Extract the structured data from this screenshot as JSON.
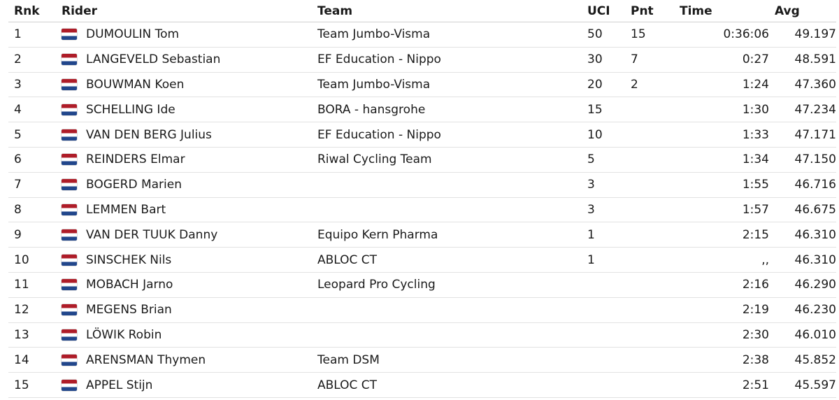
{
  "headers": {
    "rank": "Rnk",
    "rider": "Rider",
    "team": "Team",
    "uci": "UCI",
    "points": "Pnt",
    "time": "Time",
    "avg": "Avg"
  },
  "flag_icon": "netherlands-flag-icon",
  "rows": [
    {
      "rank": "1",
      "rider": "DUMOULIN Tom",
      "team": "Team Jumbo-Visma",
      "uci": "50",
      "points": "15",
      "time": "0:36:06",
      "avg": "49.197"
    },
    {
      "rank": "2",
      "rider": "LANGEVELD Sebastian",
      "team": "EF Education - Nippo",
      "uci": "30",
      "points": "7",
      "time": "0:27",
      "avg": "48.591"
    },
    {
      "rank": "3",
      "rider": "BOUWMAN Koen",
      "team": "Team Jumbo-Visma",
      "uci": "20",
      "points": "2",
      "time": "1:24",
      "avg": "47.360"
    },
    {
      "rank": "4",
      "rider": "SCHELLING Ide",
      "team": "BORA - hansgrohe",
      "uci": "15",
      "points": "",
      "time": "1:30",
      "avg": "47.234"
    },
    {
      "rank": "5",
      "rider": "VAN DEN BERG Julius",
      "team": "EF Education - Nippo",
      "uci": "10",
      "points": "",
      "time": "1:33",
      "avg": "47.171"
    },
    {
      "rank": "6",
      "rider": "REINDERS Elmar",
      "team": "Riwal Cycling Team",
      "uci": "5",
      "points": "",
      "time": "1:34",
      "avg": "47.150"
    },
    {
      "rank": "7",
      "rider": "BOGERD Marien",
      "team": "",
      "uci": "3",
      "points": "",
      "time": "1:55",
      "avg": "46.716"
    },
    {
      "rank": "8",
      "rider": "LEMMEN Bart",
      "team": "",
      "uci": "3",
      "points": "",
      "time": "1:57",
      "avg": "46.675"
    },
    {
      "rank": "9",
      "rider": "VAN DER TUUK Danny",
      "team": "Equipo Kern Pharma",
      "uci": "1",
      "points": "",
      "time": "2:15",
      "avg": "46.310"
    },
    {
      "rank": "10",
      "rider": "SINSCHEK Nils",
      "team": "ABLOC CT",
      "uci": "1",
      "points": "",
      "time": ",,",
      "avg": "46.310"
    },
    {
      "rank": "11",
      "rider": "MOBACH Jarno",
      "team": "Leopard Pro Cycling",
      "uci": "",
      "points": "",
      "time": "2:16",
      "avg": "46.290"
    },
    {
      "rank": "12",
      "rider": "MEGENS Brian",
      "team": "",
      "uci": "",
      "points": "",
      "time": "2:19",
      "avg": "46.230"
    },
    {
      "rank": "13",
      "rider": "LÖWIK Robin",
      "team": "",
      "uci": "",
      "points": "",
      "time": "2:30",
      "avg": "46.010"
    },
    {
      "rank": "14",
      "rider": "ARENSMAN Thymen",
      "team": "Team DSM",
      "uci": "",
      "points": "",
      "time": "2:38",
      "avg": "45.852"
    },
    {
      "rank": "15",
      "rider": "APPEL Stijn",
      "team": "ABLOC CT",
      "uci": "",
      "points": "",
      "time": "2:51",
      "avg": "45.597"
    }
  ]
}
